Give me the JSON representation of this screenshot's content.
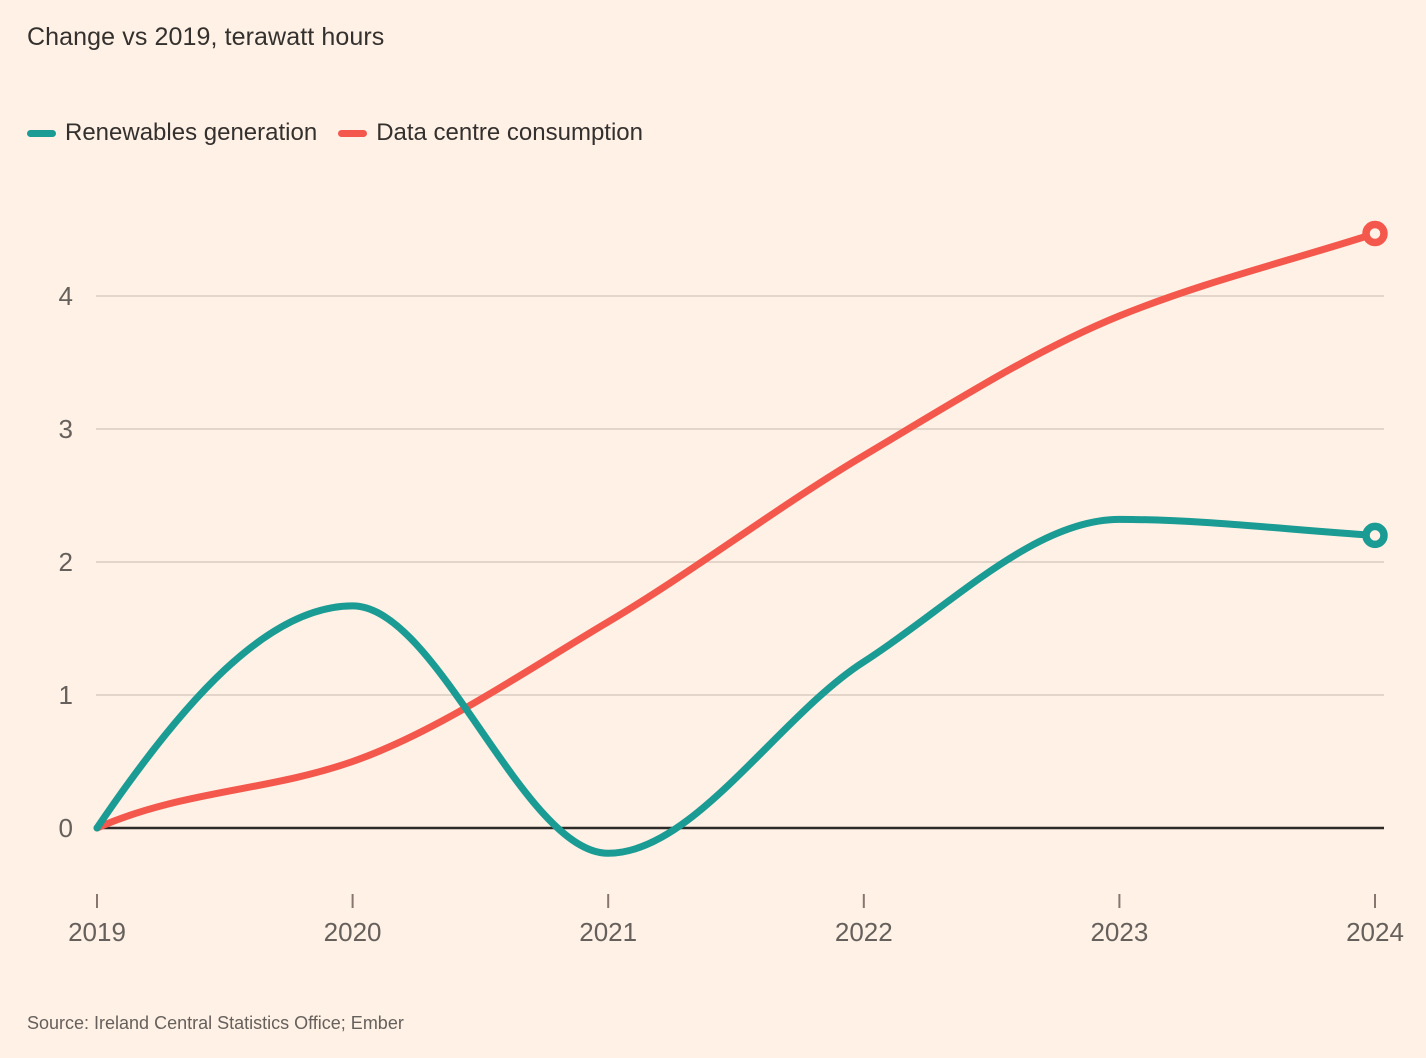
{
  "chart": {
    "title": "Change vs 2019, terawatt hours"
  },
  "chart_data": {
    "type": "line",
    "title": "Change vs 2019, terawatt hours",
    "xlabel": "",
    "ylabel": "terawatt hours (change vs 2019)",
    "x": [
      2019,
      2020,
      2021,
      2022,
      2023,
      2024
    ],
    "x_tick_labels": [
      "2019",
      "2020",
      "2021",
      "2022",
      "2023",
      "2024"
    ],
    "y_ticks": [
      0,
      1,
      2,
      3,
      4
    ],
    "ylim": [
      -0.35,
      4.6
    ],
    "grid": "horizontal",
    "curve": "smooth-monotone",
    "legend_position": "top-left",
    "series": [
      {
        "id": "data-centre-consumption",
        "name": "Data centre consumption",
        "color": "#F4584D",
        "values": [
          0,
          0.5,
          1.55,
          2.8,
          3.85,
          4.47
        ],
        "end_marker": true
      },
      {
        "id": "renewables-generation",
        "name": "Renewables generation",
        "color": "#1A9B93",
        "values": [
          0,
          1.67,
          -0.19,
          1.25,
          2.32,
          2.2
        ],
        "end_marker": true
      }
    ],
    "legend_order": [
      "renewables-generation",
      "data-centre-consumption"
    ]
  },
  "footer": {
    "source": "Source: Ireland Central Statistics Office; Ember"
  },
  "colors": {
    "background": "#FFF1E5",
    "text_primary": "#33302E",
    "text_secondary": "#66605C",
    "gridline": "#DACCC0",
    "zero_line": "#2E2A28",
    "tick_mark": "#86766E"
  }
}
